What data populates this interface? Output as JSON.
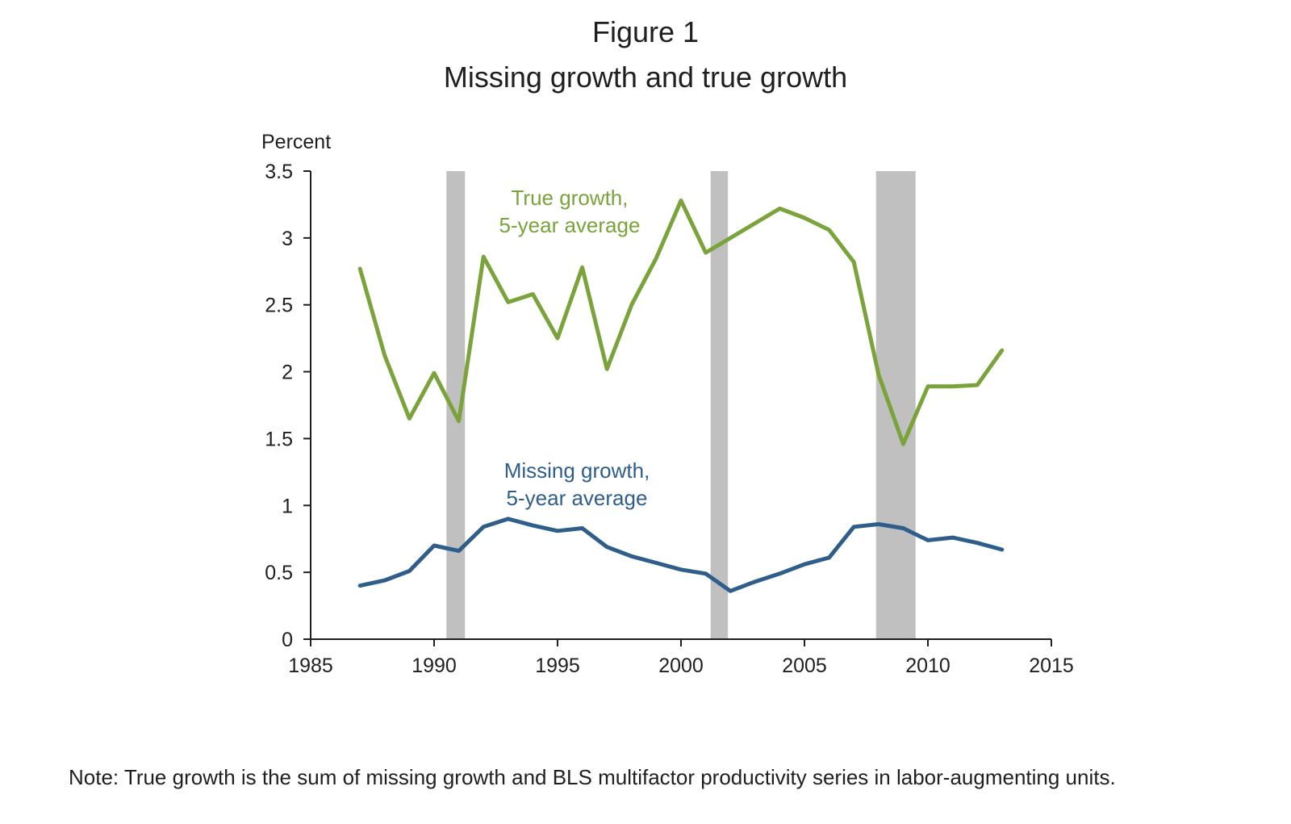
{
  "figure": {
    "label": "Figure 1",
    "title": "Missing growth and true growth",
    "note": "Note: True growth is the sum of missing growth and BLS multifactor productivity series in labor-augmenting units."
  },
  "chart_data": {
    "type": "line",
    "ylabel": "Percent",
    "xlabel": "",
    "xlim": [
      1985,
      2015
    ],
    "ylim": [
      0,
      3.5
    ],
    "x_ticks": [
      1985,
      1990,
      1995,
      2000,
      2005,
      2010,
      2015
    ],
    "y_ticks": [
      0,
      0.5,
      1,
      1.5,
      2,
      2.5,
      3,
      3.5
    ],
    "y_tick_labels": [
      "0",
      "0.5",
      "1",
      "1.5",
      "2",
      "2.5",
      "3",
      "3.5"
    ],
    "grid": false,
    "recession_bands": [
      {
        "start": 1990.5,
        "end": 1991.25
      },
      {
        "start": 2001.2,
        "end": 2001.9
      },
      {
        "start": 2007.9,
        "end": 2009.5
      }
    ],
    "x": [
      1987,
      1988,
      1989,
      1990,
      1991,
      1992,
      1993,
      1994,
      1995,
      1996,
      1997,
      1998,
      1999,
      2000,
      2001,
      2002,
      2003,
      2004,
      2005,
      2006,
      2007,
      2008,
      2009,
      2010,
      2011,
      2012,
      2013
    ],
    "series": [
      {
        "name_lines": [
          "True growth,",
          "5-year average"
        ],
        "color": "#7aa33b",
        "values": [
          2.77,
          2.12,
          1.65,
          1.99,
          1.63,
          2.86,
          2.52,
          2.58,
          2.25,
          2.78,
          2.02,
          2.5,
          2.85,
          3.28,
          2.89,
          3.0,
          3.11,
          3.22,
          3.15,
          3.06,
          2.82,
          1.98,
          1.46,
          1.89,
          1.89,
          1.9,
          2.16
        ],
        "label_pos": {
          "x": 1997.6,
          "y": 3.23
        }
      },
      {
        "name_lines": [
          "Missing growth,",
          "5-year average"
        ],
        "color": "#2f5e8a",
        "values": [
          0.4,
          0.44,
          0.51,
          0.7,
          0.66,
          0.84,
          0.9,
          0.85,
          0.81,
          0.83,
          0.69,
          0.62,
          0.57,
          0.52,
          0.49,
          0.36,
          0.43,
          0.49,
          0.56,
          0.61,
          0.84,
          0.86,
          0.83,
          0.74,
          0.76,
          0.72,
          0.67
        ]
      }
    ],
    "colors": {
      "axis": "#1f1f1f",
      "band": "#c0c0c0"
    }
  }
}
